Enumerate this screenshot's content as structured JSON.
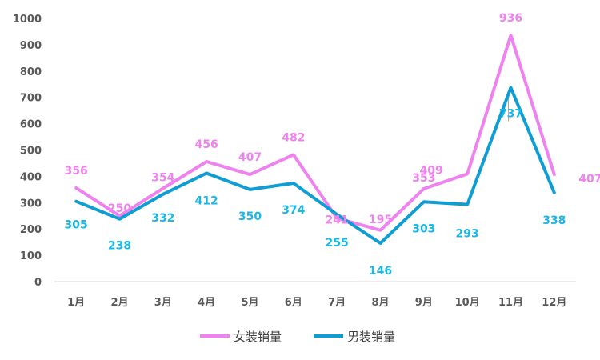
{
  "chart_data": {
    "type": "line",
    "title": "",
    "xlabel": "",
    "ylabel": "",
    "categories": [
      "1月",
      "2月",
      "3月",
      "4月",
      "5月",
      "6月",
      "7月",
      "8月",
      "9月",
      "10月",
      "11月",
      "12月"
    ],
    "ylim": [
      0,
      1000
    ],
    "yticks": [
      0,
      100,
      200,
      300,
      400,
      500,
      600,
      700,
      800,
      900,
      1000
    ],
    "grid": false,
    "legend_position": "bottom",
    "series": [
      {
        "name": "女装销量",
        "color": "#EE82EE",
        "label_color": "#EE82EE",
        "values": [
          356,
          250,
          354,
          456,
          407,
          482,
          241,
          195,
          353,
          409,
          936,
          407
        ]
      },
      {
        "name": "男装销量",
        "color": "#0E9ED3",
        "label_color": "#1AB8E8",
        "values": [
          305,
          238,
          332,
          412,
          350,
          374,
          255,
          146,
          303,
          293,
          737,
          338
        ]
      }
    ]
  }
}
